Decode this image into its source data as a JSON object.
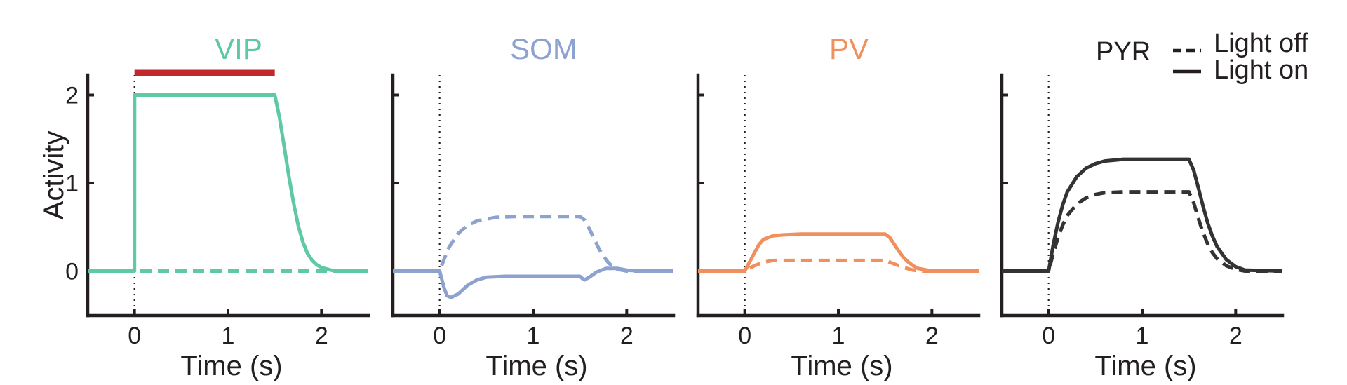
{
  "chart_data": {
    "type": "line",
    "ylabel": "Activity",
    "xlabel": "Time (s)",
    "xlim": [
      -0.5,
      2.5
    ],
    "ylim": [
      -0.5,
      2.2
    ],
    "xticks": [
      "0",
      "1",
      "2"
    ],
    "yticks": [
      "0",
      "1",
      "2"
    ],
    "stimulus": {
      "start": 0,
      "end": 1.5,
      "color": "#c1272d"
    },
    "legend": {
      "title": "PYR",
      "entries": [
        {
          "label": "Light off",
          "style": "dashed"
        },
        {
          "label": "Light on",
          "style": "solid"
        }
      ],
      "placement": "top-right"
    },
    "panels": [
      {
        "title": "VIP",
        "color": "#5ec9a2",
        "series": [
          {
            "style": "dashed",
            "x": [
              -0.5,
              2.5
            ],
            "y": [
              0,
              0
            ]
          },
          {
            "style": "solid",
            "x": [
              -0.5,
              0,
              0.001,
              1.5,
              1.55,
              1.6,
              1.65,
              1.7,
              1.75,
              1.8,
              1.85,
              1.9,
              1.95,
              2.0,
              2.1,
              2.2,
              2.5
            ],
            "y": [
              0,
              0,
              2.0,
              2.0,
              1.75,
              1.42,
              1.08,
              0.78,
              0.52,
              0.33,
              0.2,
              0.12,
              0.07,
              0.04,
              0.01,
              0.0,
              0.0
            ]
          }
        ]
      },
      {
        "title": "SOM",
        "color": "#8da2cf",
        "series": [
          {
            "style": "dashed",
            "x": [
              -0.5,
              0,
              0.05,
              0.1,
              0.2,
              0.3,
              0.4,
              0.6,
              0.8,
              1.0,
              1.5,
              1.55,
              1.6,
              1.65,
              1.7,
              1.75,
              1.8,
              1.85,
              1.9,
              2.0,
              2.1,
              2.5
            ],
            "y": [
              0,
              0,
              0.14,
              0.27,
              0.43,
              0.52,
              0.57,
              0.61,
              0.62,
              0.62,
              0.62,
              0.58,
              0.48,
              0.37,
              0.26,
              0.17,
              0.1,
              0.05,
              0.02,
              0.0,
              0.0,
              0.0
            ]
          },
          {
            "style": "solid",
            "x": [
              -0.5,
              0,
              0.02,
              0.05,
              0.08,
              0.12,
              0.2,
              0.3,
              0.4,
              0.5,
              0.7,
              1.0,
              1.5,
              1.52,
              1.55,
              1.6,
              1.68,
              1.78,
              1.9,
              2.0,
              2.15,
              2.5
            ],
            "y": [
              0,
              0,
              -0.08,
              -0.2,
              -0.28,
              -0.3,
              -0.26,
              -0.16,
              -0.1,
              -0.07,
              -0.06,
              -0.06,
              -0.06,
              -0.08,
              -0.1,
              -0.07,
              -0.01,
              0.03,
              0.03,
              0.01,
              0.0,
              0.0
            ]
          }
        ]
      },
      {
        "title": "PV",
        "color": "#f0905e",
        "series": [
          {
            "style": "dashed",
            "x": [
              -0.5,
              0,
              0.05,
              0.1,
              0.2,
              0.3,
              0.5,
              1.0,
              1.5,
              1.55,
              1.6,
              1.7,
              1.8,
              1.9,
              2.0,
              2.5
            ],
            "y": [
              0,
              0,
              0.03,
              0.06,
              0.1,
              0.12,
              0.12,
              0.12,
              0.12,
              0.1,
              0.08,
              0.04,
              0.01,
              0.0,
              0.0,
              0.0
            ]
          },
          {
            "style": "solid",
            "x": [
              -0.5,
              0,
              0.05,
              0.1,
              0.15,
              0.2,
              0.3,
              0.4,
              0.6,
              1.0,
              1.5,
              1.55,
              1.6,
              1.65,
              1.7,
              1.75,
              1.8,
              1.85,
              1.9,
              2.0,
              2.1,
              2.5
            ],
            "y": [
              0,
              0,
              0.1,
              0.2,
              0.3,
              0.36,
              0.4,
              0.41,
              0.42,
              0.42,
              0.42,
              0.38,
              0.3,
              0.22,
              0.15,
              0.1,
              0.06,
              0.03,
              0.02,
              0.0,
              0.0,
              0.0
            ]
          }
        ]
      },
      {
        "title": "",
        "color": "#333333",
        "series": [
          {
            "style": "dashed",
            "x": [
              -0.5,
              0,
              0.05,
              0.1,
              0.15,
              0.2,
              0.3,
              0.4,
              0.5,
              0.6,
              0.8,
              1.0,
              1.5,
              1.55,
              1.6,
              1.65,
              1.7,
              1.75,
              1.8,
              1.9,
              2.0,
              2.1,
              2.5
            ],
            "y": [
              0,
              0,
              0.2,
              0.38,
              0.52,
              0.63,
              0.76,
              0.83,
              0.87,
              0.89,
              0.9,
              0.9,
              0.9,
              0.78,
              0.6,
              0.44,
              0.31,
              0.21,
              0.14,
              0.06,
              0.02,
              0.0,
              0.0
            ]
          },
          {
            "style": "solid",
            "x": [
              -0.5,
              0,
              0.05,
              0.1,
              0.15,
              0.2,
              0.3,
              0.4,
              0.5,
              0.6,
              0.8,
              1.0,
              1.5,
              1.55,
              1.6,
              1.65,
              1.7,
              1.75,
              1.8,
              1.9,
              2.0,
              2.1,
              2.5
            ],
            "y": [
              0,
              0,
              0.3,
              0.55,
              0.75,
              0.9,
              1.07,
              1.17,
              1.22,
              1.25,
              1.27,
              1.27,
              1.27,
              1.15,
              0.95,
              0.74,
              0.55,
              0.4,
              0.28,
              0.13,
              0.05,
              0.01,
              0.0
            ]
          }
        ]
      }
    ]
  }
}
